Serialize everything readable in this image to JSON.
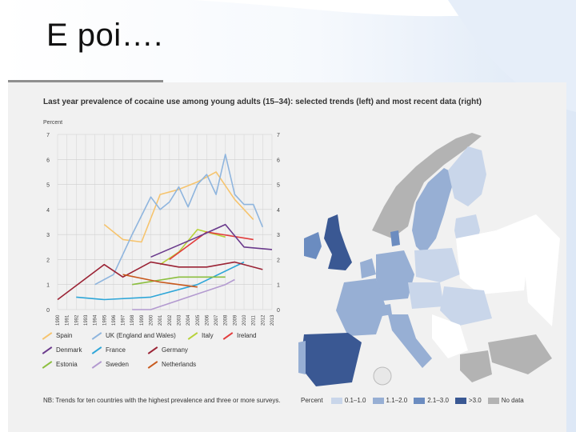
{
  "slide": {
    "title": "E poi…."
  },
  "figure": {
    "title": "Last year prevalence of cocaine use among young adults (15–34): selected trends (left) and most recent data (right)",
    "y_axis_title": "Percent",
    "footnote": "NB: Trends for ten countries with the highest prevalence and three or more surveys.",
    "map_legend": {
      "title": "Percent",
      "items": [
        {
          "label": "0.1–1.0",
          "color": "#c9d6ea"
        },
        {
          "label": "1.1–2.0",
          "color": "#97afd4"
        },
        {
          "label": "2.1–3.0",
          "color": "#6b8cc0"
        },
        {
          "label": ">3.0",
          "color": "#3a5893"
        },
        {
          "label": "No data",
          "color": "#b3b3b3"
        }
      ]
    }
  },
  "chart_data": {
    "type": "line",
    "title": "Last year prevalence of cocaine use among young adults (15–34): selected trends",
    "xlabel": "",
    "ylabel": "Percent",
    "ylim": [
      0,
      7
    ],
    "yticks": [
      0,
      1,
      2,
      3,
      4,
      5,
      6,
      7
    ],
    "x": [
      1990,
      1991,
      1992,
      1993,
      1994,
      1995,
      1996,
      1997,
      1998,
      1999,
      2000,
      2001,
      2002,
      2003,
      2004,
      2005,
      2006,
      2007,
      2008,
      2009,
      2010,
      2011,
      2012,
      2013
    ],
    "series": [
      {
        "name": "Spain",
        "color": "#f6c46e",
        "points": [
          [
            1995,
            3.4
          ],
          [
            1997,
            2.8
          ],
          [
            1999,
            2.7
          ],
          [
            2001,
            4.6
          ],
          [
            2003,
            4.8
          ],
          [
            2005,
            5.1
          ],
          [
            2007,
            5.5
          ],
          [
            2009,
            4.4
          ],
          [
            2011,
            3.6
          ]
        ]
      },
      {
        "name": "UK (England and Wales)",
        "color": "#8fb5de",
        "points": [
          [
            1994,
            1.0
          ],
          [
            1996,
            1.4
          ],
          [
            1998,
            3.0
          ],
          [
            2000,
            4.5
          ],
          [
            2001,
            4.0
          ],
          [
            2002,
            4.3
          ],
          [
            2003,
            4.9
          ],
          [
            2004,
            4.1
          ],
          [
            2005,
            5.0
          ],
          [
            2006,
            5.4
          ],
          [
            2007,
            4.6
          ],
          [
            2008,
            6.2
          ],
          [
            2009,
            4.6
          ],
          [
            2010,
            4.2
          ],
          [
            2011,
            4.2
          ],
          [
            2012,
            3.3
          ]
        ]
      },
      {
        "name": "Italy",
        "color": "#b7d23a",
        "points": [
          [
            2001,
            1.8
          ],
          [
            2003,
            2.3
          ],
          [
            2005,
            3.2
          ],
          [
            2008,
            2.9
          ]
        ]
      },
      {
        "name": "Ireland",
        "color": "#e23c3c",
        "points": [
          [
            2002,
            2.0
          ],
          [
            2006,
            3.1
          ],
          [
            2011,
            2.8
          ]
        ]
      },
      {
        "name": "Denmark",
        "color": "#6a3a8c",
        "points": [
          [
            2000,
            2.1
          ],
          [
            2005,
            2.9
          ],
          [
            2008,
            3.4
          ],
          [
            2010,
            2.5
          ],
          [
            2013,
            2.4
          ]
        ]
      },
      {
        "name": "France",
        "color": "#2ea6d8",
        "points": [
          [
            1992,
            0.5
          ],
          [
            1995,
            0.4
          ],
          [
            2000,
            0.5
          ],
          [
            2005,
            1.0
          ],
          [
            2010,
            1.9
          ]
        ]
      },
      {
        "name": "Germany",
        "color": "#9b2335",
        "points": [
          [
            1990,
            0.4
          ],
          [
            1995,
            1.8
          ],
          [
            1997,
            1.3
          ],
          [
            2000,
            1.9
          ],
          [
            2003,
            1.7
          ],
          [
            2006,
            1.7
          ],
          [
            2009,
            1.9
          ],
          [
            2012,
            1.6
          ]
        ]
      },
      {
        "name": "Estonia",
        "color": "#8cbf3f",
        "points": [
          [
            1998,
            1.0
          ],
          [
            2003,
            1.3
          ],
          [
            2008,
            1.3
          ]
        ]
      },
      {
        "name": "Sweden",
        "color": "#b39ad0",
        "points": [
          [
            1998,
            0.0
          ],
          [
            2000,
            0.0
          ],
          [
            2004,
            0.5
          ],
          [
            2008,
            1.0
          ],
          [
            2009,
            1.2
          ]
        ]
      },
      {
        "name": "Netherlands",
        "color": "#c85a1e",
        "points": [
          [
            1997,
            1.4
          ],
          [
            2001,
            1.1
          ],
          [
            2005,
            0.9
          ]
        ]
      }
    ]
  }
}
